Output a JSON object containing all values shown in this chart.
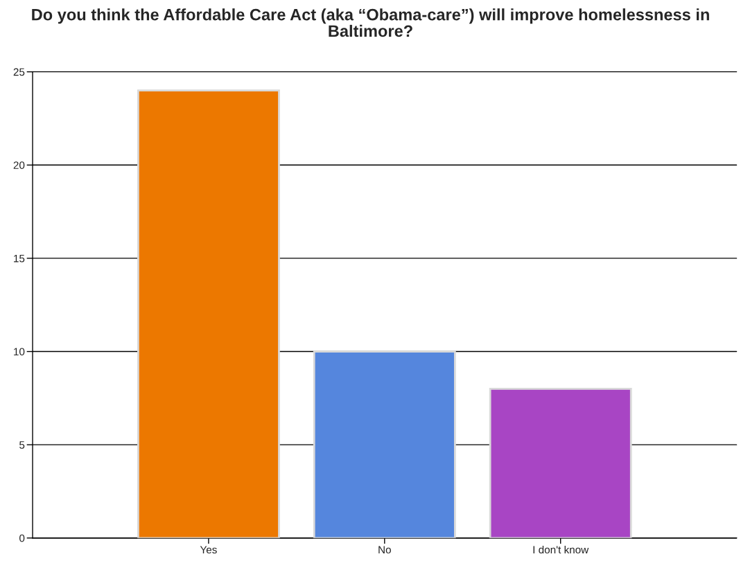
{
  "chart_data": {
    "type": "bar",
    "title": "Do you think the Affordable Care Act (aka “Obama-care”) will improve homelessness in Baltimore?",
    "categories": [
      "Yes",
      "No",
      "I don't know"
    ],
    "values": [
      24,
      10,
      8
    ],
    "colors": [
      "#ec7800",
      "#5586dd",
      "#a845c4"
    ],
    "ylim": [
      0,
      25
    ],
    "yticks": [
      0,
      5,
      10,
      15,
      20,
      25
    ],
    "grid": "y",
    "legend": false
  }
}
